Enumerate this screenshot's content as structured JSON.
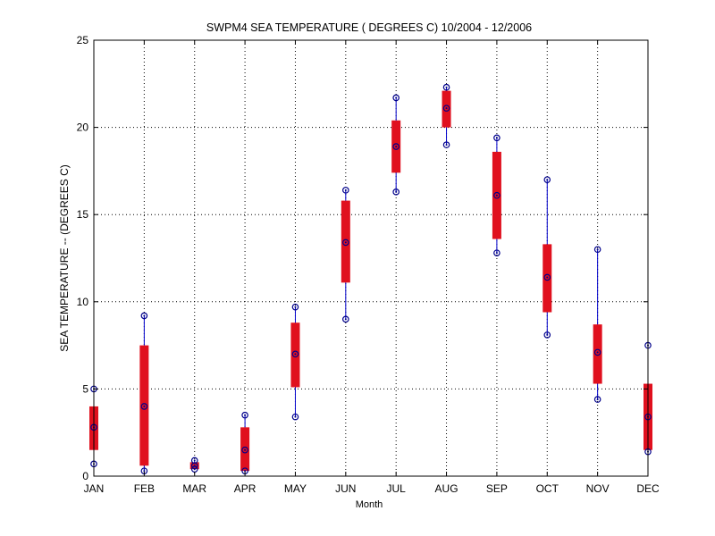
{
  "chart_data": {
    "type": "box",
    "title": "SWPM4  SEA TEMPERATURE ( DEGREES C) 10/2004 - 12/2006",
    "xlabel": "Month",
    "ylabel": "SEA TEMPERATURE -- (DEGREES C)",
    "categories": [
      "JAN",
      "FEB",
      "MAR",
      "APR",
      "MAY",
      "JUN",
      "JUL",
      "AUG",
      "SEP",
      "OCT",
      "NOV",
      "DEC"
    ],
    "ylim": [
      0,
      25
    ],
    "yticks": [
      "0",
      "5",
      "10",
      "15",
      "20",
      "25"
    ],
    "grid": true,
    "colors": {
      "box": "#e0101e",
      "whisker": "#0000cc",
      "marker": "#00008b",
      "grid": "#000000"
    },
    "series": [
      {
        "min": [
          0.7,
          0.3,
          0.4,
          0.3,
          3.4,
          9.0,
          16.3,
          19.0,
          12.8,
          8.1,
          4.4,
          1.4
        ],
        "q1": [
          1.5,
          0.6,
          0.4,
          0.3,
          5.1,
          11.1,
          17.4,
          20.0,
          13.6,
          9.4,
          5.3,
          1.5
        ],
        "median": [
          2.8,
          4.0,
          0.6,
          1.5,
          7.0,
          13.4,
          18.9,
          21.1,
          16.1,
          11.4,
          7.1,
          3.4
        ],
        "q3": [
          4.0,
          7.5,
          0.8,
          2.8,
          8.8,
          15.8,
          20.4,
          22.1,
          18.6,
          13.3,
          8.7,
          5.3
        ],
        "max": [
          5.0,
          9.2,
          0.9,
          3.5,
          9.7,
          16.4,
          21.7,
          22.3,
          19.4,
          17.0,
          13.0,
          7.5
        ]
      }
    ]
  }
}
